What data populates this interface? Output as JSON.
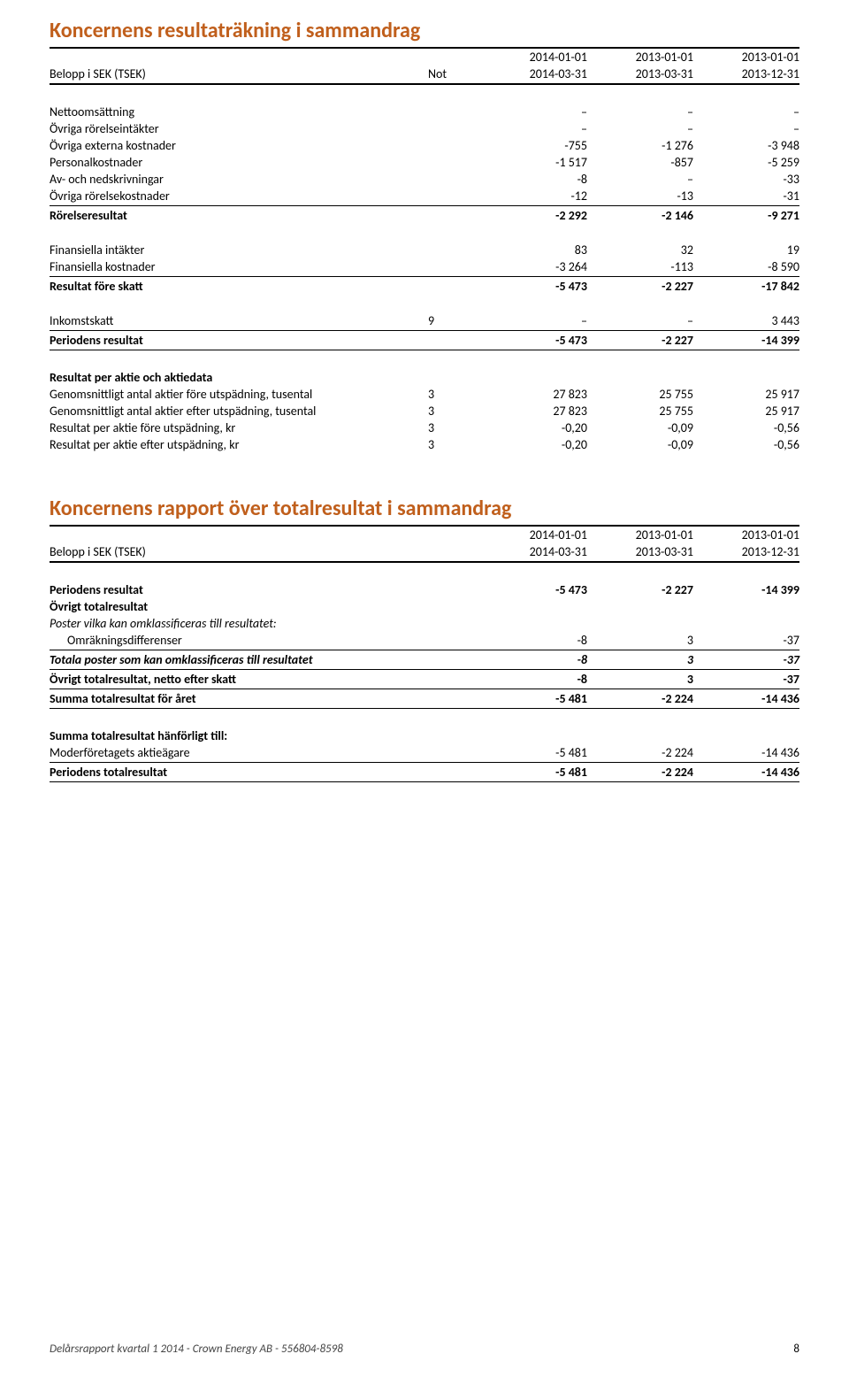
{
  "colors": {
    "heading": "#c05f1c",
    "text": "#000000",
    "rule": "#000000",
    "background": "#ffffff"
  },
  "section1": {
    "title": "Koncernens resultaträkning i sammandrag",
    "header": {
      "label": "Belopp i SEK (TSEK)",
      "note": "Not",
      "periods_from": [
        "2014-01-01",
        "2013-01-01",
        "2013-01-01"
      ],
      "periods_to": [
        "2014-03-31",
        "2013-03-31",
        "2013-12-31"
      ]
    },
    "rows": [
      {
        "label": "Nettoomsättning",
        "note": "",
        "v": [
          "–",
          "–",
          "–"
        ]
      },
      {
        "label": "Övriga rörelseintäkter",
        "note": "",
        "v": [
          "–",
          "–",
          "–"
        ]
      },
      {
        "label": "Övriga externa kostnader",
        "note": "",
        "v": [
          "-755",
          "-1 276",
          "-3 948"
        ]
      },
      {
        "label": "Personalkostnader",
        "note": "",
        "v": [
          "-1 517",
          "-857",
          "-5 259"
        ]
      },
      {
        "label": "Av- och nedskrivningar",
        "note": "",
        "v": [
          "-8",
          "–",
          "-33"
        ]
      },
      {
        "label": "Övriga rörelsekostnader",
        "note": "",
        "v": [
          "-12",
          "-13",
          "-31"
        ]
      },
      {
        "label": "Rörelseresultat",
        "note": "",
        "v": [
          "-2 292",
          "-2 146",
          "-9 271"
        ],
        "bold": true,
        "rule_above": true
      },
      {
        "spacer": true
      },
      {
        "label": "Finansiella intäkter",
        "note": "",
        "v": [
          "83",
          "32",
          "19"
        ]
      },
      {
        "label": "Finansiella kostnader",
        "note": "",
        "v": [
          "-3 264",
          "-113",
          "-8 590"
        ]
      },
      {
        "label": "Resultat före skatt",
        "note": "",
        "v": [
          "-5 473",
          "-2 227",
          "-17 842"
        ],
        "bold": true,
        "rule_above": true
      },
      {
        "spacer": true
      },
      {
        "label": "Inkomstskatt",
        "note": "9",
        "v": [
          "–",
          "–",
          "3 443"
        ]
      },
      {
        "label": "Periodens resultat",
        "note": "",
        "v": [
          "-5 473",
          "-2 227",
          "-14 399"
        ],
        "bold": true,
        "rule_above": true,
        "rule_below": true
      },
      {
        "spacer": true
      },
      {
        "label": "Resultat per aktie och aktiedata",
        "note": "",
        "v": [
          "",
          "",
          ""
        ],
        "bold": true
      },
      {
        "label": "Genomsnittligt antal aktier före utspädning, tusental",
        "note": "3",
        "v": [
          "27 823",
          "25 755",
          "25 917"
        ]
      },
      {
        "label": "Genomsnittligt antal aktier efter utspädning, tusental",
        "note": "3",
        "v": [
          "27 823",
          "25 755",
          "25 917"
        ]
      },
      {
        "label": "Resultat per aktie före utspädning, kr",
        "note": "3",
        "v": [
          "-0,20",
          "-0,09",
          "-0,56"
        ]
      },
      {
        "label": "Resultat per aktie efter utspädning, kr",
        "note": "3",
        "v": [
          "-0,20",
          "-0,09",
          "-0,56"
        ]
      }
    ]
  },
  "section2": {
    "title": "Koncernens rapport över totalresultat i sammandrag",
    "header": {
      "label": "Belopp i SEK (TSEK)",
      "periods_from": [
        "2014-01-01",
        "2013-01-01",
        "2013-01-01"
      ],
      "periods_to": [
        "2014-03-31",
        "2013-03-31",
        "2013-12-31"
      ]
    },
    "rows": [
      {
        "label": "Periodens resultat",
        "v": [
          "-5 473",
          "-2 227",
          "-14 399"
        ],
        "bold": true
      },
      {
        "label": "Övrigt totalresultat",
        "v": [
          "",
          "",
          ""
        ],
        "bold": true
      },
      {
        "label": "Poster vilka kan omklassificeras till resultatet:",
        "v": [
          "",
          "",
          ""
        ],
        "italic": true
      },
      {
        "label": "Omräkningsdifferenser",
        "v": [
          "-8",
          "3",
          "-37"
        ],
        "indent": true
      },
      {
        "label": "Totala poster som kan omklassificeras till resultatet",
        "v": [
          "-8",
          "3",
          "-37"
        ],
        "bold": true,
        "italic": true,
        "rule_above": true
      },
      {
        "label": "Övrigt totalresultat, netto efter skatt",
        "v": [
          "-8",
          "3",
          "-37"
        ],
        "bold": true,
        "rule_above": true
      },
      {
        "label": "Summa totalresultat för året",
        "v": [
          "-5 481",
          "-2 224",
          "-14 436"
        ],
        "bold": true,
        "rule_above": true,
        "rule_below": true
      },
      {
        "spacer": true
      },
      {
        "label": "Summa totalresultat hänförligt till:",
        "v": [
          "",
          "",
          ""
        ],
        "bold": true
      },
      {
        "label": "Moderföretagets aktieägare",
        "v": [
          "-5 481",
          "-2 224",
          "-14 436"
        ]
      },
      {
        "label": "Periodens totalresultat",
        "v": [
          "-5 481",
          "-2 224",
          "-14 436"
        ],
        "bold": true,
        "rule_above": true,
        "rule_below": true
      }
    ]
  },
  "footer": {
    "text": "Delårsrapport kvartal 1 2014 - Crown Energy AB - 556804-8598",
    "page": "8"
  }
}
